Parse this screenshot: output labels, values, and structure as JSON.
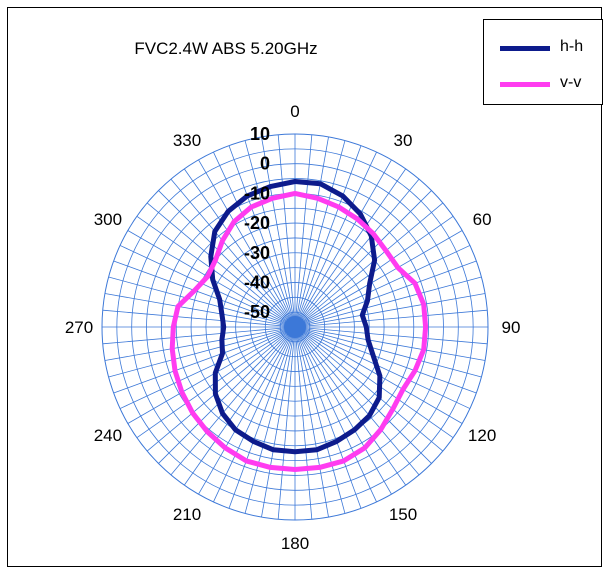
{
  "chart_data": {
    "type": "polar-line",
    "title": "FVC2.4W ABS 5.20GHz",
    "angular_ticks": [
      "0",
      "30",
      "60",
      "90",
      "120",
      "150",
      "180",
      "210",
      "240",
      "270",
      "300",
      "330"
    ],
    "radial_ticks": [
      10,
      0,
      -10,
      -20,
      -30,
      -40,
      -50
    ],
    "rlim": [
      -55,
      10
    ],
    "grid": true,
    "legend_position": "top-right",
    "series": [
      {
        "name": "h-h",
        "color": "#0d1b8c",
        "angles": [
          0,
          10,
          20,
          30,
          40,
          50,
          60,
          70,
          80,
          90,
          100,
          110,
          120,
          130,
          140,
          150,
          160,
          170,
          180,
          190,
          200,
          210,
          220,
          230,
          240,
          250,
          260,
          270,
          280,
          290,
          300,
          310,
          320,
          330,
          340,
          350
        ],
        "values": [
          -6,
          -6,
          -8,
          -11,
          -15,
          -20,
          -26,
          -29,
          -32,
          -31,
          -30,
          -27,
          -22,
          -18,
          -16,
          -15,
          -14,
          -13,
          -13,
          -13,
          -14,
          -15,
          -17,
          -20,
          -24,
          -29,
          -30,
          -31,
          -30,
          -28,
          -23,
          -18,
          -13,
          -10,
          -8,
          -7
        ]
      },
      {
        "name": "v-v",
        "color": "#ff3cf0",
        "angles": [
          0,
          10,
          20,
          30,
          40,
          50,
          60,
          70,
          80,
          90,
          100,
          110,
          120,
          130,
          140,
          150,
          160,
          170,
          180,
          190,
          200,
          210,
          220,
          230,
          240,
          250,
          260,
          270,
          280,
          290,
          300,
          310,
          320,
          330,
          340,
          350
        ],
        "values": [
          -10,
          -11,
          -12,
          -13,
          -14,
          -15,
          -15,
          -12,
          -11,
          -11,
          -11,
          -12,
          -13,
          -12,
          -10,
          -8,
          -7,
          -7,
          -7,
          -7,
          -7,
          -8,
          -9,
          -10,
          -11,
          -12,
          -13,
          -14,
          -15,
          -19,
          -21,
          -20,
          -17,
          -14,
          -12,
          -11
        ]
      }
    ]
  }
}
